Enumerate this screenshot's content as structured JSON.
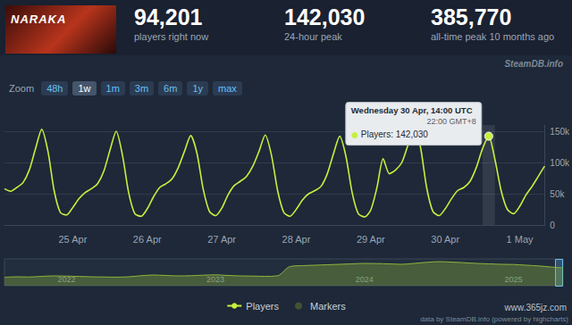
{
  "header": {
    "logo": "NARAKA",
    "stats": [
      {
        "value": "94,201",
        "label": "players right now"
      },
      {
        "value": "142,030",
        "label": "24-hour peak"
      },
      {
        "value": "385,770",
        "label": "all-time peak 10 months ago"
      }
    ]
  },
  "watermark": "SteamDB.info",
  "zoom": {
    "label": "Zoom",
    "options": [
      "48h",
      "1w",
      "1m",
      "3m",
      "6m",
      "1y",
      "max"
    ],
    "selected": "1w"
  },
  "chart_data": [
    {
      "type": "line",
      "categories": [
        null,
        null,
        null,
        null,
        null,
        null,
        null,
        null,
        null,
        null,
        null,
        "25 Apr",
        null,
        null,
        null,
        null,
        null,
        null,
        null,
        null,
        null,
        null,
        null,
        "26 Apr",
        null,
        null,
        null,
        null,
        null,
        null,
        null,
        null,
        null,
        null,
        null,
        "27 Apr",
        null,
        null,
        null,
        null,
        null,
        null,
        null,
        null,
        null,
        null,
        null,
        "28 Apr",
        null,
        null,
        null,
        null,
        null,
        null,
        null,
        null,
        null,
        null,
        null,
        "29 Apr",
        null,
        null,
        null,
        null,
        null,
        null,
        null,
        null,
        null,
        null,
        null,
        "30 Apr",
        null,
        null,
        null,
        null,
        null,
        null,
        null,
        null,
        null,
        null,
        null,
        "1 May",
        null,
        null,
        null,
        null
      ],
      "series": [
        {
          "name": "Players",
          "color": "#c6ef3e",
          "marker": "none",
          "values": [
            58000,
            54000,
            60000,
            68000,
            88000,
            122000,
            153000,
            118000,
            55000,
            20000,
            16000,
            28000,
            42000,
            52000,
            58000,
            66000,
            86000,
            120000,
            150000,
            112000,
            52000,
            18000,
            14000,
            26000,
            45000,
            60000,
            66000,
            74000,
            92000,
            118000,
            143000,
            115000,
            58000,
            22000,
            15000,
            27000,
            48000,
            63000,
            70000,
            78000,
            94000,
            118000,
            144000,
            112000,
            55000,
            20000,
            14000,
            25000,
            40000,
            50000,
            55000,
            62000,
            82000,
            114000,
            142000,
            110000,
            52000,
            18000,
            13000,
            24000,
            60000,
            106000,
            82000,
            88000,
            100000,
            128000,
            155000,
            125000,
            60000,
            22000,
            15000,
            26000,
            42000,
            55000,
            60000,
            70000,
            92000,
            122000,
            142030,
            105000,
            55000,
            25000,
            18000,
            30000,
            48000,
            62000,
            78000,
            94201
          ]
        },
        {
          "name": "Markers",
          "type": "scatter",
          "color": "#4d5c2e",
          "marker": "circle",
          "values": [
            null,
            null,
            null,
            null,
            null,
            null,
            null,
            null,
            null,
            null,
            null,
            null,
            null,
            null,
            null,
            null,
            null,
            null,
            null,
            null,
            null,
            null,
            null,
            null,
            null,
            null,
            null,
            null,
            null,
            null,
            null,
            null,
            null,
            null,
            null,
            null,
            null,
            null,
            null,
            null,
            null,
            null,
            null,
            null,
            null,
            null,
            null,
            null,
            null,
            null,
            null,
            null,
            null,
            null,
            null,
            null,
            null,
            null,
            null,
            null,
            null,
            null,
            null,
            null,
            null,
            null,
            null,
            null,
            null,
            null,
            null,
            null,
            null,
            null,
            null,
            null,
            null,
            null,
            null,
            null,
            null,
            null,
            null,
            null,
            null,
            null,
            null,
            null
          ]
        }
      ],
      "ylim": [
        0,
        160000
      ],
      "yticks": [
        0,
        {
          "value": 50000,
          "label": "50k"
        },
        {
          "value": 100000,
          "label": "100k"
        },
        {
          "value": 150000,
          "label": "150k"
        }
      ],
      "grid": true,
      "legend": "bottom",
      "tooltip": {
        "lines": [
          "Wednesday 30 Apr, 14:00 UTC",
          "22:00 GMT+8"
        ],
        "text": "Players: 142,030",
        "value": 142030
      }
    },
    {
      "type": "area",
      "categories": [
        null,
        null,
        null,
        null,
        null,
        "2022",
        null,
        null,
        null,
        null,
        null,
        null,
        null,
        null,
        null,
        null,
        null,
        "2023",
        null,
        null,
        null,
        null,
        null,
        null,
        null,
        null,
        null,
        null,
        null,
        "2024",
        null,
        null,
        null,
        null,
        null,
        null,
        null,
        null,
        null,
        null,
        null,
        "2025",
        null,
        null,
        null,
        null
      ],
      "values": [
        95000,
        100000,
        98000,
        105000,
        110000,
        108000,
        104000,
        100000,
        98000,
        96000,
        100000,
        112000,
        120000,
        115000,
        110000,
        112000,
        118000,
        122000,
        115000,
        110000,
        108000,
        105000,
        112000,
        215000,
        225000,
        230000,
        235000,
        240000,
        245000,
        250000,
        248000,
        245000,
        240000,
        250000,
        262000,
        270000,
        265000,
        258000,
        250000,
        245000,
        240000,
        238000,
        230000,
        222000,
        210000,
        200000
      ],
      "color": "#8db63c",
      "ylim": [
        0,
        300000
      ],
      "tick_labels": "x",
      "grid": false
    }
  ],
  "footer": {
    "credit": "data by SteamDB.info (powered by highcharts)",
    "watermark": "www.365jz.com"
  }
}
